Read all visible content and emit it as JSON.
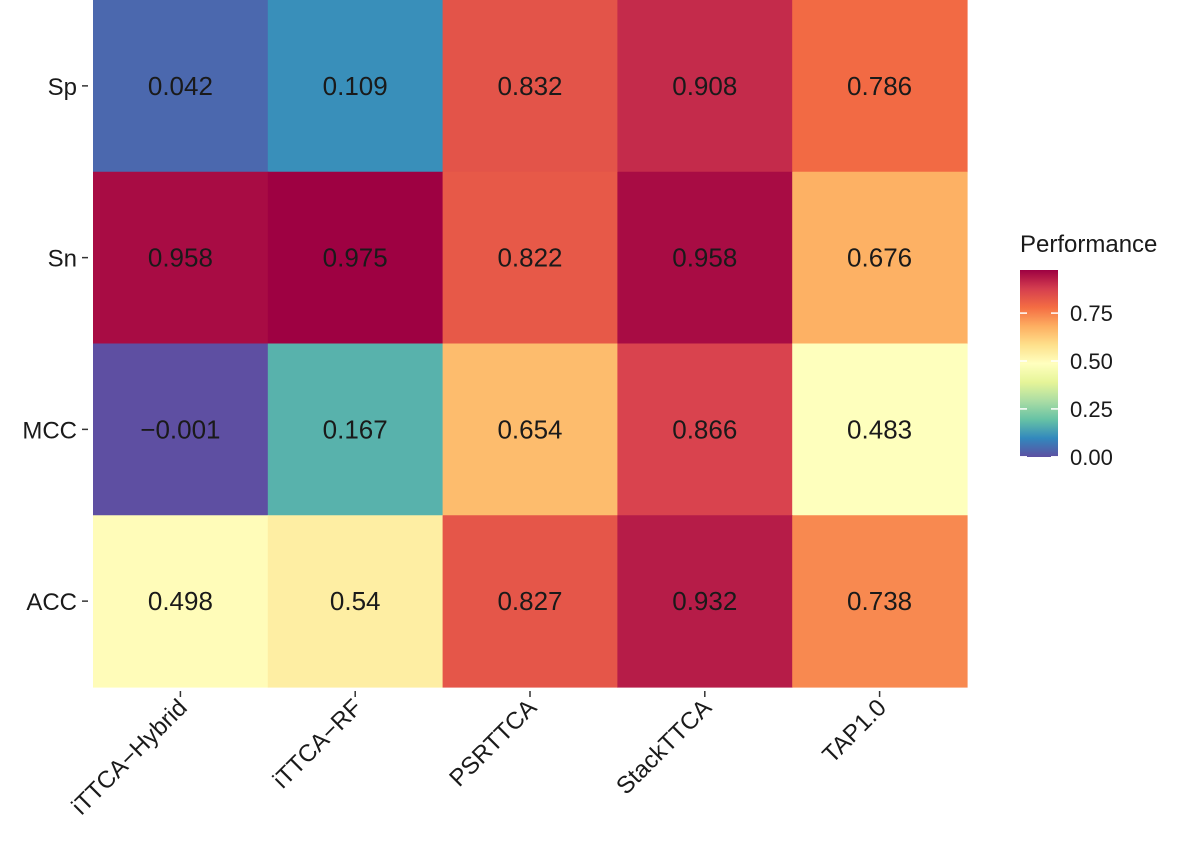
{
  "chart_data": {
    "type": "heatmap",
    "rows": [
      "Sp",
      "Sn",
      "MCC",
      "ACC"
    ],
    "columns": [
      "iTTCA−Hybrid",
      "iTTCA−RF",
      "PSRTTCA",
      "StackTTCA",
      "TAP1.0"
    ],
    "values": [
      [
        0.042,
        0.109,
        0.832,
        0.908,
        0.786
      ],
      [
        0.958,
        0.975,
        0.822,
        0.958,
        0.676
      ],
      [
        -0.001,
        0.167,
        0.654,
        0.866,
        0.483
      ],
      [
        0.498,
        0.54,
        0.827,
        0.932,
        0.738
      ]
    ],
    "labels": [
      [
        "0.042",
        "0.109",
        "0.832",
        "0.908",
        "0.786"
      ],
      [
        "0.958",
        "0.975",
        "0.822",
        "0.958",
        "0.676"
      ],
      [
        "−0.001",
        "0.167",
        "0.654",
        "0.866",
        "0.483"
      ],
      [
        "0.498",
        "0.54",
        "0.827",
        "0.932",
        "0.738"
      ]
    ],
    "colorscale": "Spectral (reversed)",
    "color_range": [
      -0.001,
      0.975
    ],
    "legend": {
      "title": "Performance",
      "ticks": [
        0.0,
        0.25,
        0.5,
        0.75
      ],
      "tick_labels": [
        "0.00",
        "0.25",
        "0.50",
        "0.75"
      ],
      "placement": "right"
    }
  },
  "colors": {
    "spectral": [
      "#5e4fa2",
      "#3288bd",
      "#66c2a5",
      "#abdda4",
      "#e6f598",
      "#ffffbf",
      "#fee08b",
      "#fdae61",
      "#f46d43",
      "#d53e4f",
      "#9e0142"
    ]
  }
}
